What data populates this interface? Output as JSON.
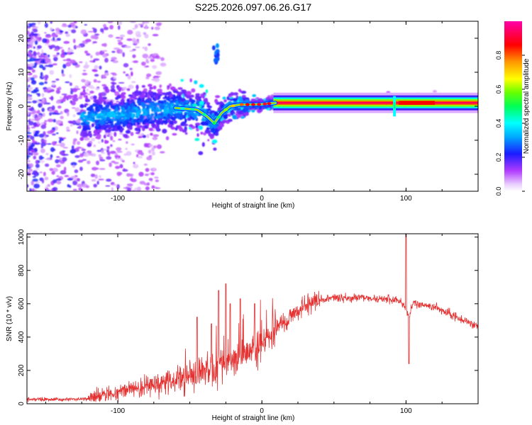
{
  "figure": {
    "title": "S225.2026.097.06.26.G17"
  },
  "chart_data": [
    {
      "type": "heatmap",
      "title": "S225.2026.097.06.26.G17",
      "xlabel": "Height of straight line (km)",
      "ylabel": "Frequency (Hz)",
      "xlim": [
        -163,
        150
      ],
      "ylim": [
        -25,
        25
      ],
      "xticks": [
        -100,
        0,
        100
      ],
      "yticks": [
        -20,
        -10,
        0,
        10,
        20
      ],
      "xtick_labels": [
        "-100",
        "0",
        "100"
      ],
      "ytick_labels": [
        "-20",
        "-10",
        "0",
        "10",
        "20"
      ],
      "colorbar": {
        "label": "Normalized spectral amplitude",
        "range": [
          0,
          1
        ],
        "ticks": [
          0.0,
          0.2,
          0.4,
          0.6,
          0.8
        ],
        "tick_labels": [
          "0.0",
          "0.2",
          "0.4",
          "0.6",
          "0.8"
        ]
      },
      "ridge": {
        "description_points_x": [
          -120,
          -100,
          -80,
          -60,
          -45,
          -38,
          -33,
          -28,
          -22,
          -15,
          -8,
          0,
          10,
          60,
          92,
          100,
          150
        ],
        "frequency_hz": [
          -3,
          -2.5,
          -1.5,
          -0.5,
          -1,
          -3,
          -5,
          -2,
          0,
          0.5,
          0.5,
          0.6,
          1.0,
          1.0,
          1.0,
          1.0,
          1.0
        ]
      },
      "grid": false
    },
    {
      "type": "line",
      "xlabel": "Height of straight line (km)",
      "ylabel": "SNR (10 * v/v)",
      "xlim": [
        -163,
        150
      ],
      "ylim": [
        0,
        1020
      ],
      "xticks": [
        -100,
        0,
        100
      ],
      "yticks": [
        0,
        200,
        400,
        600,
        800,
        1000
      ],
      "xtick_labels": [
        "-100",
        "0",
        "100"
      ],
      "ytick_labels": [
        "0",
        "200",
        "400",
        "600",
        "800",
        "1000"
      ],
      "series": [
        {
          "name": "SNR",
          "color": "#e53030",
          "trend_x": [
            -163,
            -140,
            -120,
            -105,
            -90,
            -75,
            -60,
            -50,
            -40,
            -30,
            -20,
            -10,
            0,
            10,
            20,
            30,
            40,
            50,
            60,
            70,
            80,
            90,
            95,
            98,
            100,
            102,
            105,
            110,
            120,
            130,
            140,
            150
          ],
          "trend_y": [
            25,
            25,
            30,
            60,
            90,
            110,
            140,
            170,
            200,
            230,
            260,
            300,
            380,
            450,
            520,
            590,
            625,
            635,
            638,
            635,
            630,
            625,
            620,
            600,
            560,
            520,
            610,
            600,
            580,
            540,
            500,
            460
          ],
          "spikes_x": [
            -45,
            -35,
            -30,
            -25,
            -22,
            -15,
            -5,
            100,
            102
          ],
          "spikes_y": [
            520,
            480,
            680,
            720,
            600,
            630,
            600,
            1020,
            240
          ]
        }
      ],
      "grid": false
    }
  ]
}
